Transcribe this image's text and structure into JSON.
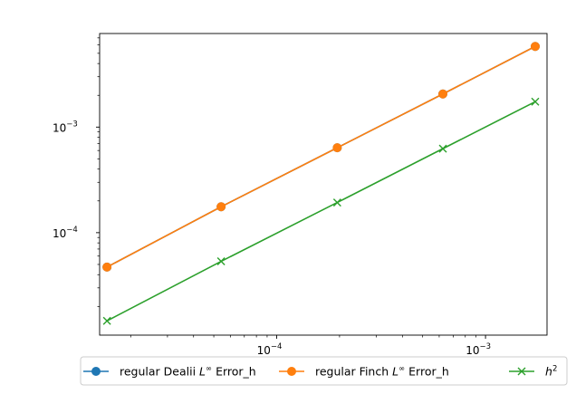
{
  "chart_data": {
    "type": "line",
    "xscale": "log",
    "yscale": "log",
    "xlim": [
      1.42e-05,
      0.00197
    ],
    "ylim": [
      1.07e-05,
      0.0077
    ],
    "grid": false,
    "legend_position": "bottom-center-outside",
    "x": [
      1.54e-05,
      5.42e-05,
      0.000195,
      0.000625,
      0.00173
    ],
    "x_ticks": [
      {
        "value": 0.0001,
        "base": "10",
        "exp": "−4"
      },
      {
        "value": 0.001,
        "base": "10",
        "exp": "−3"
      }
    ],
    "y_ticks": [
      {
        "value": 0.0001,
        "base": "10",
        "exp": "−4"
      },
      {
        "value": 0.001,
        "base": "10",
        "exp": "−3"
      }
    ],
    "series": [
      {
        "name_pre": "regular Dealii ",
        "name_math": "L",
        "name_sup": "∞",
        "name_post": " Error_h",
        "color": "#1f77b4",
        "marker": "circle",
        "values": [
          4.72e-05,
          0.000176,
          0.000637,
          0.00206,
          0.00581
        ]
      },
      {
        "name_pre": "regular Finch ",
        "name_math": "L",
        "name_sup": "∞",
        "name_post": " Error_h",
        "color": "#ff7f0e",
        "marker": "circle",
        "values": [
          4.72e-05,
          0.000176,
          0.000637,
          0.00206,
          0.00581
        ]
      },
      {
        "name_pre": "",
        "name_math": "h",
        "name_sup": "2",
        "name_post": "",
        "color": "#2ca02c",
        "marker": "x",
        "values": [
          1.46e-05,
          5.35e-05,
          0.000193,
          0.000625,
          0.00174
        ]
      }
    ]
  }
}
